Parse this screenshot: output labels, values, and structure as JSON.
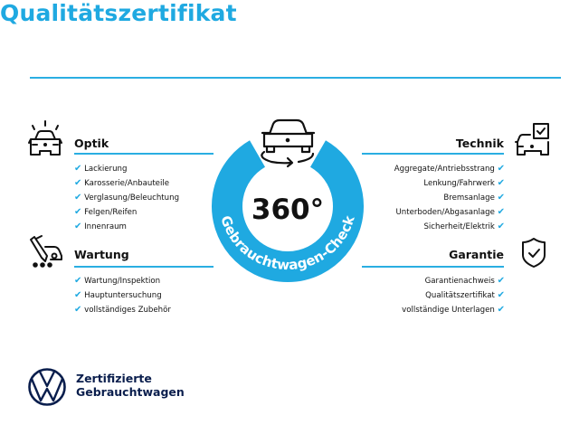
{
  "title": "Qualitätszertifikat",
  "colors": {
    "accent": "#1fa9e1",
    "brand_navy": "#0a1e4d",
    "text": "#111111"
  },
  "center": {
    "value": "360°",
    "ring_text": "Gebrauchtwagen-Check",
    "icon": "car-rotate-360-icon"
  },
  "sections": {
    "optik": {
      "heading": "Optik",
      "icon": "car-lights-icon",
      "items": [
        "Lackierung",
        "Karosserie/Anbauteile",
        "Verglasung/Beleuchtung",
        "Felgen/Reifen",
        "Innenraum"
      ]
    },
    "wartung": {
      "heading": "Wartung",
      "icon": "service-tools-icon",
      "items": [
        "Wartung/Inspektion",
        "Hauptuntersuchung",
        "vollständiges Zubehör"
      ]
    },
    "technik": {
      "heading": "Technik",
      "icon": "car-checklist-icon",
      "items": [
        "Aggregate/Antriebsstrang",
        "Lenkung/Fahrwerk",
        "Bremsanlage",
        "Unterboden/Abgasanlage",
        "Sicherheit/Elektrik"
      ]
    },
    "garantie": {
      "heading": "Garantie",
      "icon": "shield-check-icon",
      "items": [
        "Garantienachweis",
        "Qualitätszertifikat",
        "vollständige Unterlagen"
      ]
    }
  },
  "check_mark": "✔",
  "footer": {
    "logo": "VW",
    "line1": "Zertifizierte",
    "line2": "Gebrauchtwagen"
  }
}
